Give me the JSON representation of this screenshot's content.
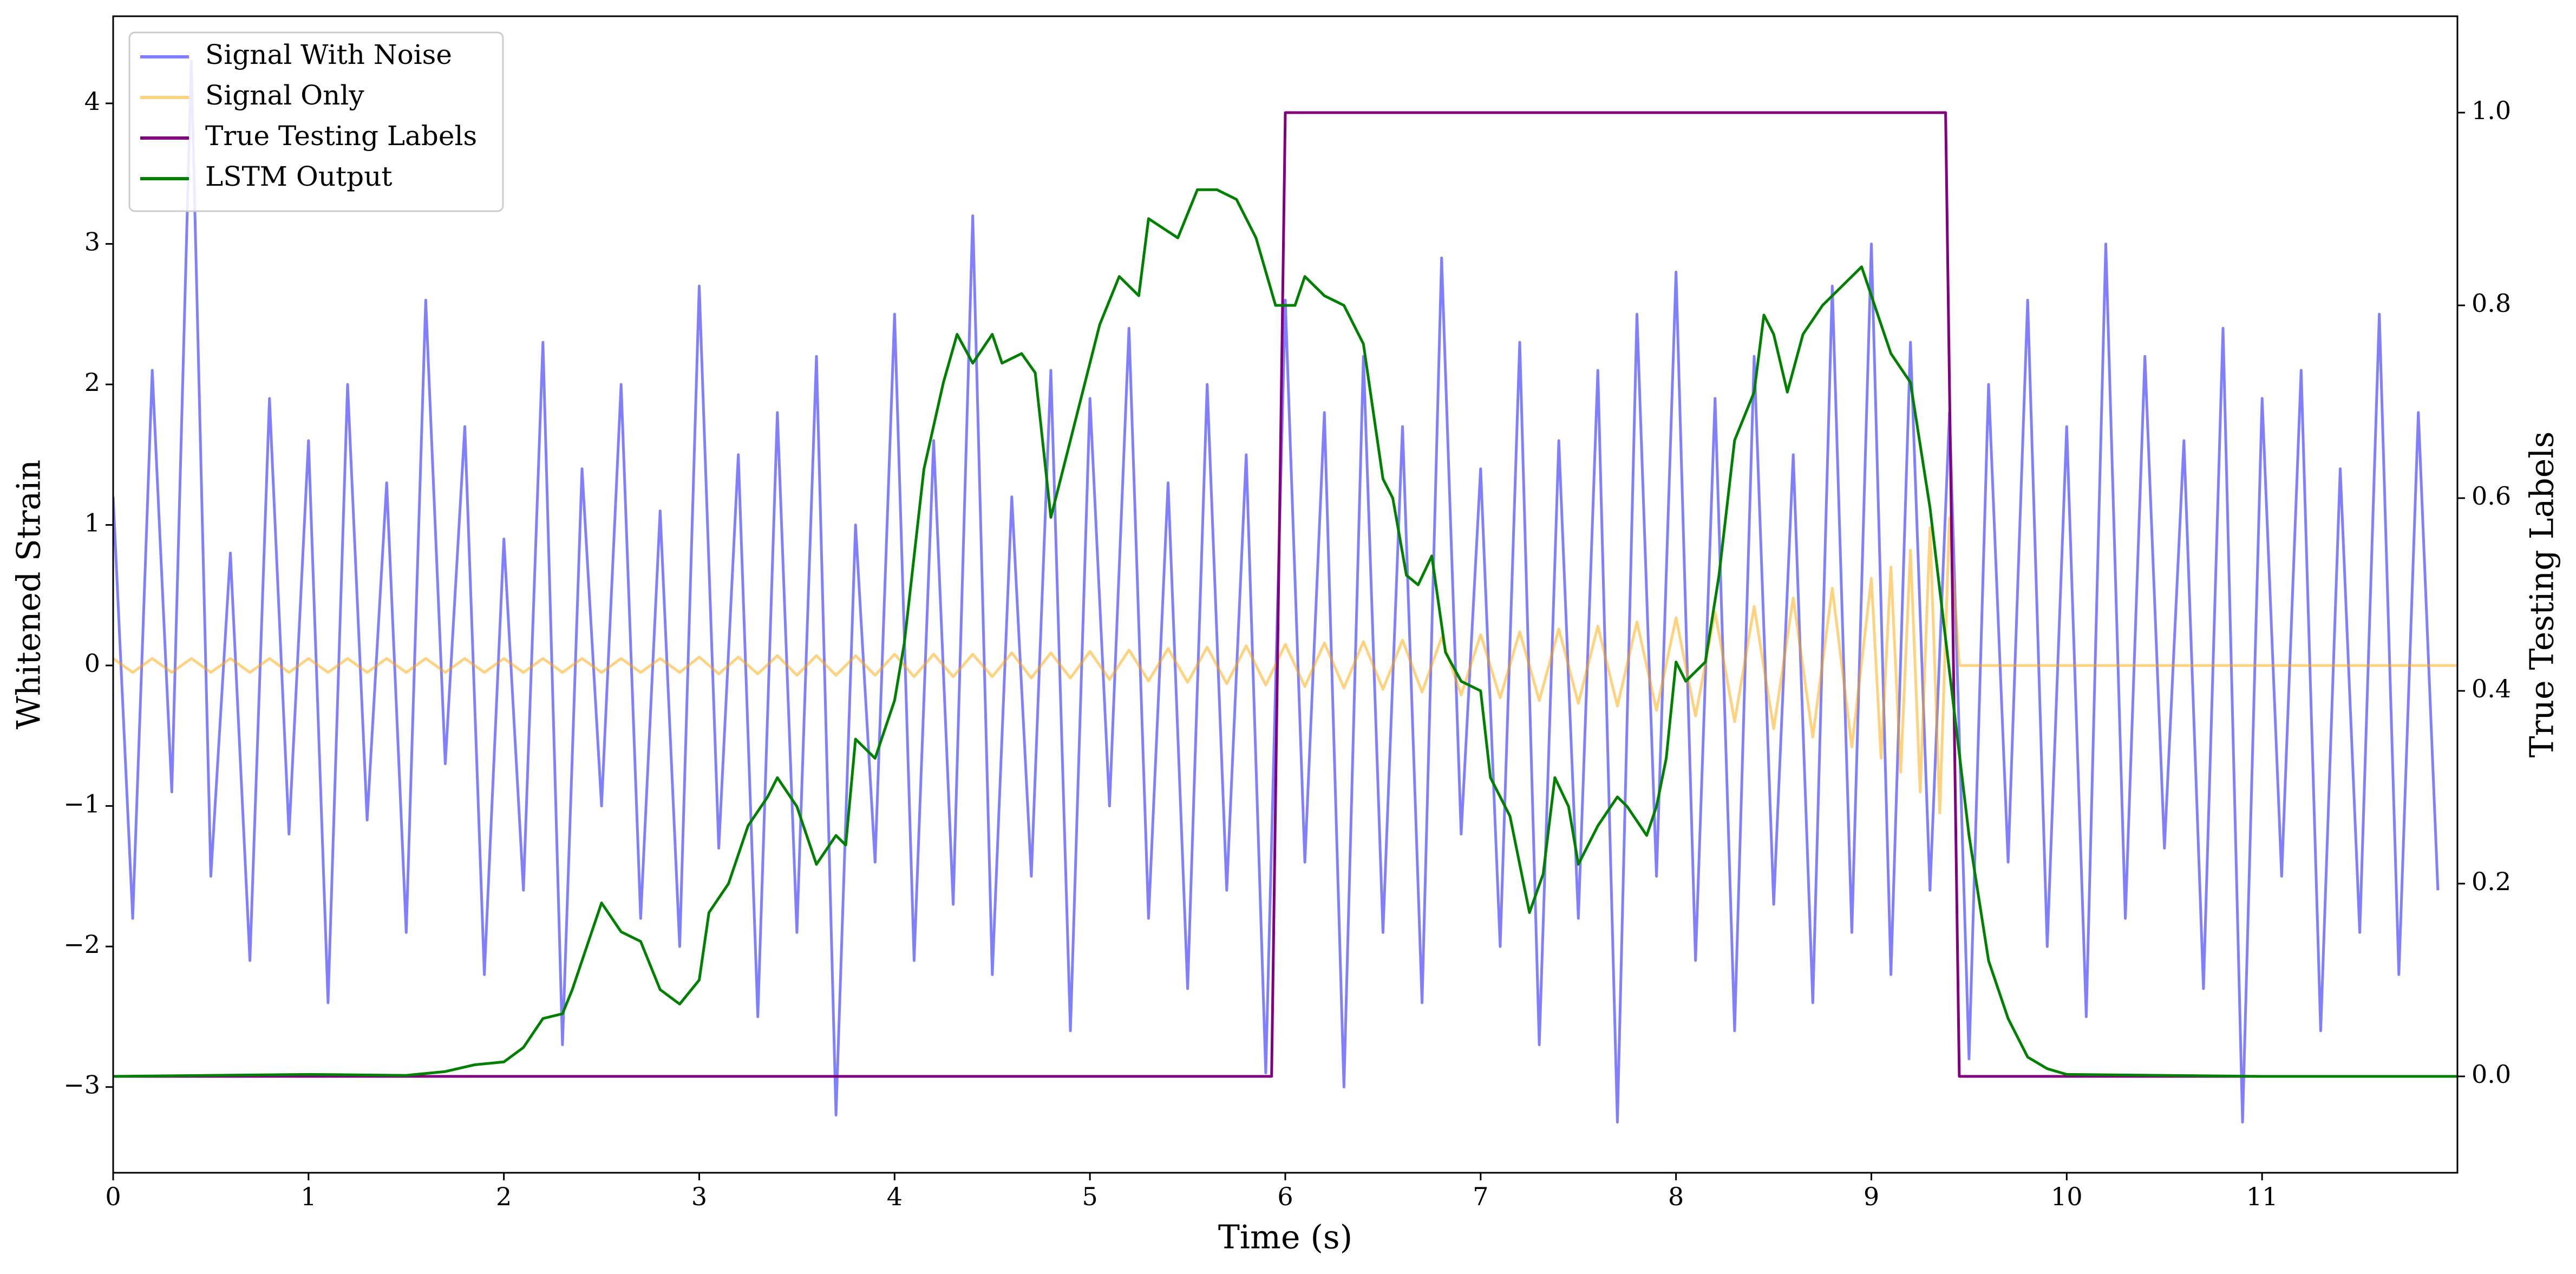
{
  "chart_data": {
    "type": "line",
    "xlabel": "Time (s)",
    "ylabel": "Whitened Strain",
    "y2label": "True Testing Labels",
    "xlim": [
      0,
      12
    ],
    "xticks": [
      0,
      1,
      2,
      3,
      4,
      5,
      6,
      7,
      8,
      9,
      10,
      11
    ],
    "ylim": [
      -3.61,
      4.62
    ],
    "yticks": [
      {
        "value": -3,
        "label": "−3"
      },
      {
        "value": -2,
        "label": "−2"
      },
      {
        "value": -1,
        "label": "−1"
      },
      0,
      1,
      2,
      3,
      4
    ],
    "y2lim": [
      -0.1,
      1.1
    ],
    "y2ticks": [
      {
        "value": 0,
        "label": "0.0"
      },
      {
        "value": 0.2,
        "label": "0.2"
      },
      {
        "value": 0.4,
        "label": "0.4"
      },
      {
        "value": 0.6,
        "label": "0.6"
      },
      {
        "value": 0.8,
        "label": "0.8"
      },
      {
        "value": 1,
        "label": "1.0"
      }
    ],
    "legend": "upper left",
    "series": [
      {
        "name": "Signal With Noise",
        "color": "#0000ff",
        "alpha": 0.5,
        "x": [
          0,
          0.1,
          0.2,
          0.3,
          0.4,
          0.5,
          0.6,
          0.7,
          0.8,
          0.9,
          1,
          1.1,
          1.2,
          1.3,
          1.4,
          1.5,
          1.6,
          1.7,
          1.8,
          1.9,
          2,
          2.1,
          2.2,
          2.3,
          2.4,
          2.5,
          2.6,
          2.7,
          2.8,
          2.9,
          3,
          3.1,
          3.2,
          3.3,
          3.4,
          3.5,
          3.6,
          3.7,
          3.8,
          3.9,
          4,
          4.1,
          4.2,
          4.3,
          4.4,
          4.5,
          4.6,
          4.7,
          4.8,
          4.9,
          5,
          5.1,
          5.2,
          5.3,
          5.4,
          5.5,
          5.6,
          5.7,
          5.8,
          5.9,
          6,
          6.1,
          6.2,
          6.3,
          6.4,
          6.5,
          6.6,
          6.7,
          6.8,
          6.9,
          7,
          7.1,
          7.2,
          7.3,
          7.4,
          7.5,
          7.6,
          7.7,
          7.8,
          7.9,
          8,
          8.1,
          8.2,
          8.3,
          8.4,
          8.5,
          8.6,
          8.7,
          8.8,
          8.9,
          9,
          9.1,
          9.2,
          9.3,
          9.4,
          9.5,
          9.6,
          9.7,
          9.8,
          9.9,
          10,
          10.1,
          10.2,
          10.3,
          10.4,
          10.5,
          10.6,
          10.7,
          10.8,
          10.9,
          11,
          11.1,
          11.2,
          11.3,
          11.4,
          11.5,
          11.6,
          11.7,
          11.8,
          11.9
        ],
        "values": [
          1.2,
          -1.8,
          2.1,
          -0.9,
          4.3,
          -1.5,
          0.8,
          -2.1,
          1.9,
          -1.2,
          1.6,
          -2.4,
          2.0,
          -1.1,
          1.3,
          -1.9,
          2.6,
          -0.7,
          1.7,
          -2.2,
          0.9,
          -1.6,
          2.3,
          -2.7,
          1.4,
          -1.0,
          2.0,
          -1.8,
          1.1,
          -2.0,
          2.7,
          -1.3,
          1.5,
          -2.5,
          1.8,
          -1.9,
          2.2,
          -3.2,
          1.0,
          -1.4,
          2.5,
          -2.1,
          1.6,
          -1.7,
          3.2,
          -2.2,
          1.2,
          -1.5,
          2.1,
          -2.6,
          1.9,
          -1.0,
          2.4,
          -1.8,
          1.3,
          -2.3,
          2.0,
          -1.6,
          1.5,
          -2.9,
          2.6,
          -1.4,
          1.8,
          -3.0,
          2.2,
          -1.9,
          1.7,
          -2.4,
          2.9,
          -1.2,
          1.4,
          -2.0,
          2.3,
          -2.7,
          1.6,
          -1.8,
          2.1,
          -3.25,
          2.5,
          -1.5,
          2.8,
          -2.1,
          1.9,
          -2.6,
          2.2,
          -1.7,
          1.5,
          -2.4,
          2.7,
          -1.9,
          3.0,
          -2.2,
          2.3,
          -1.6,
          1.8,
          -2.8,
          2.0,
          -1.4,
          2.6,
          -2.0,
          1.7,
          -2.5,
          3.0,
          -1.8,
          2.2,
          -1.3,
          1.6,
          -2.3,
          2.4,
          -3.25,
          1.9,
          -1.5,
          2.1,
          -2.6,
          1.4,
          -1.9,
          2.5,
          -2.2,
          1.8,
          -1.6
        ]
      },
      {
        "name": "Signal Only",
        "color": "#ffa500",
        "alpha": 0.5,
        "x": [
          0,
          0.1,
          0.2,
          0.3,
          0.4,
          0.5,
          0.6,
          0.7,
          0.8,
          0.9,
          1,
          1.1,
          1.2,
          1.3,
          1.4,
          1.5,
          1.6,
          1.7,
          1.8,
          1.9,
          2,
          2.1,
          2.2,
          2.3,
          2.4,
          2.5,
          2.6,
          2.7,
          2.8,
          2.9,
          3,
          3.1,
          3.2,
          3.3,
          3.4,
          3.5,
          3.6,
          3.7,
          3.8,
          3.9,
          4,
          4.1,
          4.2,
          4.3,
          4.4,
          4.5,
          4.6,
          4.7,
          4.8,
          4.9,
          5,
          5.1,
          5.2,
          5.3,
          5.4,
          5.5,
          5.6,
          5.7,
          5.8,
          5.9,
          6,
          6.1,
          6.2,
          6.3,
          6.4,
          6.5,
          6.6,
          6.7,
          6.8,
          6.9,
          7,
          7.1,
          7.2,
          7.3,
          7.4,
          7.5,
          7.6,
          7.7,
          7.8,
          7.9,
          8,
          8.1,
          8.2,
          8.3,
          8.4,
          8.5,
          8.6,
          8.7,
          8.8,
          8.9,
          9,
          9.05,
          9.1,
          9.15,
          9.2,
          9.25,
          9.3,
          9.35,
          9.4,
          9.45,
          12
        ],
        "values": [
          0.05,
          -0.05,
          0.05,
          -0.05,
          0.05,
          -0.05,
          0.05,
          -0.05,
          0.05,
          -0.05,
          0.05,
          -0.05,
          0.05,
          -0.05,
          0.05,
          -0.05,
          0.05,
          -0.05,
          0.05,
          -0.05,
          0.05,
          -0.05,
          0.05,
          -0.05,
          0.05,
          -0.05,
          0.05,
          -0.05,
          0.05,
          -0.05,
          0.06,
          -0.06,
          0.06,
          -0.06,
          0.07,
          -0.07,
          0.07,
          -0.07,
          0.07,
          -0.07,
          0.08,
          -0.08,
          0.08,
          -0.08,
          0.08,
          -0.08,
          0.09,
          -0.09,
          0.09,
          -0.09,
          0.1,
          -0.1,
          0.11,
          -0.11,
          0.12,
          -0.12,
          0.13,
          -0.13,
          0.14,
          -0.14,
          0.15,
          -0.15,
          0.16,
          -0.16,
          0.17,
          -0.17,
          0.18,
          -0.19,
          0.2,
          -0.21,
          0.22,
          -0.23,
          0.24,
          -0.25,
          0.26,
          -0.27,
          0.28,
          -0.29,
          0.31,
          -0.32,
          0.34,
          -0.36,
          0.38,
          -0.4,
          0.42,
          -0.45,
          0.48,
          -0.51,
          0.55,
          -0.58,
          0.62,
          -0.66,
          0.7,
          -0.76,
          0.82,
          -0.9,
          0.98,
          -1.05,
          1.05,
          0,
          0
        ]
      },
      {
        "name": "True Testing Labels",
        "color": "#800080",
        "axis": "y2",
        "x": [
          0,
          5.93,
          6.0,
          9.38,
          9.45,
          12
        ],
        "values": [
          0,
          0,
          1,
          1,
          0,
          0
        ]
      },
      {
        "name": "LSTM Output",
        "color": "#008000",
        "axis": "y2",
        "x": [
          0,
          1.0,
          1.5,
          1.7,
          1.85,
          2.0,
          2.1,
          2.2,
          2.3,
          2.35,
          2.45,
          2.5,
          2.6,
          2.7,
          2.8,
          2.9,
          3.0,
          3.05,
          3.15,
          3.25,
          3.35,
          3.4,
          3.5,
          3.6,
          3.7,
          3.75,
          3.8,
          3.9,
          4.0,
          4.05,
          4.15,
          4.25,
          4.32,
          4.4,
          4.5,
          4.55,
          4.65,
          4.72,
          4.8,
          4.9,
          4.95,
          5.05,
          5.15,
          5.25,
          5.3,
          5.45,
          5.55,
          5.65,
          5.75,
          5.85,
          5.95,
          6.05,
          6.1,
          6.2,
          6.3,
          6.4,
          6.5,
          6.55,
          6.62,
          6.68,
          6.75,
          6.82,
          6.9,
          7.0,
          7.05,
          7.15,
          7.25,
          7.32,
          7.38,
          7.45,
          7.5,
          7.6,
          7.7,
          7.75,
          7.85,
          7.9,
          7.95,
          8.0,
          8.05,
          8.15,
          8.22,
          8.3,
          8.4,
          8.45,
          8.5,
          8.57,
          8.65,
          8.75,
          8.85,
          8.95,
          9.05,
          9.1,
          9.2,
          9.3,
          9.4,
          9.5,
          9.6,
          9.7,
          9.8,
          9.9,
          10.0,
          11.0,
          12.0
        ],
        "values": [
          0,
          0.002,
          0.001,
          0.005,
          0.012,
          0.015,
          0.03,
          0.06,
          0.065,
          0.09,
          0.15,
          0.18,
          0.15,
          0.14,
          0.09,
          0.075,
          0.1,
          0.17,
          0.2,
          0.26,
          0.29,
          0.31,
          0.28,
          0.22,
          0.25,
          0.24,
          0.35,
          0.33,
          0.39,
          0.45,
          0.63,
          0.72,
          0.77,
          0.74,
          0.77,
          0.74,
          0.75,
          0.73,
          0.58,
          0.66,
          0.7,
          0.78,
          0.83,
          0.81,
          0.89,
          0.87,
          0.92,
          0.92,
          0.91,
          0.87,
          0.8,
          0.8,
          0.83,
          0.81,
          0.8,
          0.76,
          0.62,
          0.6,
          0.52,
          0.51,
          0.54,
          0.44,
          0.41,
          0.4,
          0.31,
          0.27,
          0.17,
          0.21,
          0.31,
          0.28,
          0.22,
          0.26,
          0.29,
          0.28,
          0.25,
          0.28,
          0.33,
          0.43,
          0.41,
          0.43,
          0.52,
          0.66,
          0.71,
          0.79,
          0.77,
          0.71,
          0.77,
          0.8,
          0.82,
          0.84,
          0.78,
          0.75,
          0.72,
          0.59,
          0.42,
          0.25,
          0.12,
          0.06,
          0.02,
          0.008,
          0.002,
          0,
          0
        ]
      }
    ]
  }
}
